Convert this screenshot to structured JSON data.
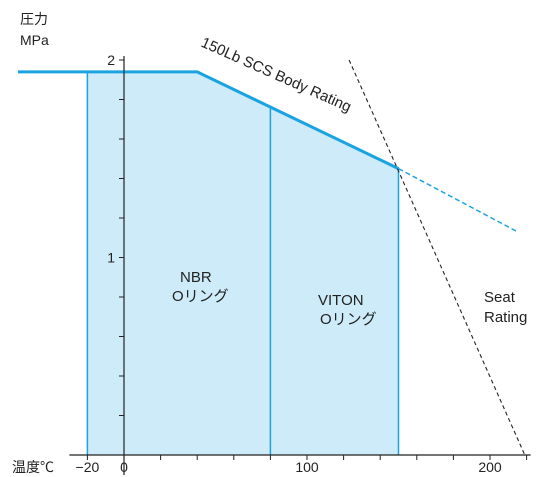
{
  "chart_data": {
    "type": "line",
    "y_axis_label": [
      "圧力",
      "MPa"
    ],
    "x_axis_label": "温度℃",
    "xlim": [
      -20,
      220
    ],
    "ylim": [
      0,
      2
    ],
    "x_ticks": [
      {
        "value": -20,
        "label": "−20"
      },
      {
        "value": 0,
        "label": "0"
      },
      {
        "value": 100,
        "label": "100"
      },
      {
        "value": 200,
        "label": "200"
      }
    ],
    "x_minor_step": 20,
    "y_ticks": [
      {
        "value": 1,
        "label": "1"
      },
      {
        "value": 2,
        "label": "2"
      }
    ],
    "y_minor_step": 0.2,
    "series": [
      {
        "name": "150Lb SCS Body Rating",
        "color": "#1aa3e0",
        "points": [
          [
            -58,
            1.94
          ],
          [
            40,
            1.94
          ],
          [
            150,
            1.45
          ]
        ],
        "extension": [
          [
            150,
            1.45
          ],
          [
            215,
            1.13
          ]
        ]
      },
      {
        "name": "Seat Rating",
        "color": "#222222",
        "points": [
          [
            123,
            2.0
          ],
          [
            219,
            0.0
          ]
        ]
      }
    ],
    "regions": [
      {
        "label": [
          "NBR",
          "Oリング"
        ],
        "x_range": [
          -20,
          80
        ],
        "fill": "#cdebf8"
      },
      {
        "label": [
          "VITON",
          "Oリング"
        ],
        "x_range": [
          80,
          150
        ],
        "fill": "#cdebf8"
      }
    ]
  }
}
